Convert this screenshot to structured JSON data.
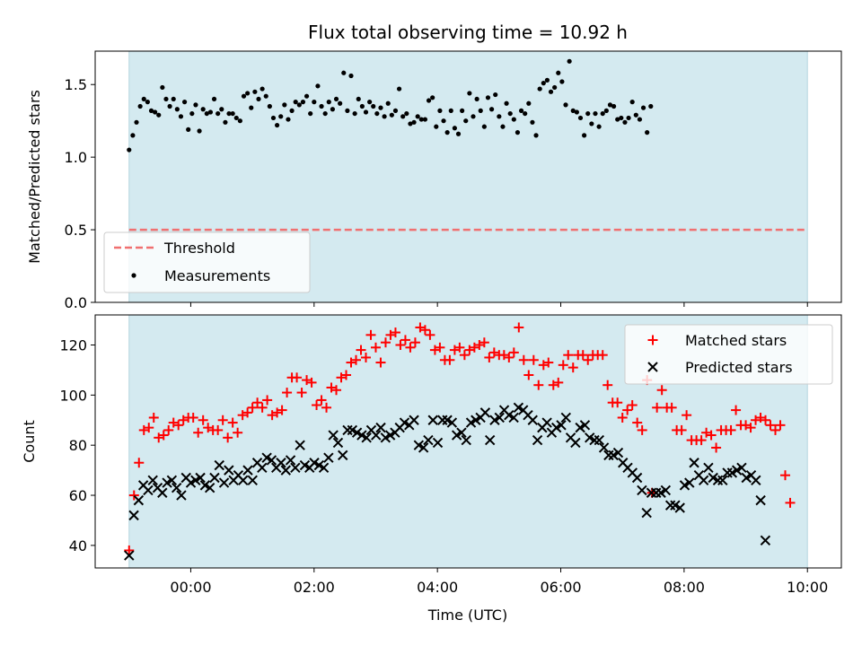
{
  "colors": {
    "shade": "#d4eaf0",
    "threshold": "#f07070",
    "measurement": "#000000",
    "matched": "#ff0000",
    "predicted": "#000000"
  },
  "chart_data": [
    {
      "type": "scatter",
      "title": "Flux total observing time = 10.92 h",
      "xlabel": "",
      "ylabel": "Matched/Predicted stars",
      "xlim": [
        -1.55,
        10.55
      ],
      "ylim": [
        0,
        1.73
      ],
      "yticks": [
        "0.0",
        "0.5",
        "1.0",
        "1.5"
      ],
      "shaded_span": [
        -1.0,
        10.0
      ],
      "threshold": {
        "label": "Threshold",
        "value": 0.5
      },
      "legend": {
        "position": "lower-left",
        "entries": [
          "Threshold",
          "Measurements"
        ]
      },
      "series": [
        {
          "name": "Measurements",
          "x_start": -1.0,
          "x_step": 0.06,
          "values": [
            1.05,
            1.15,
            1.24,
            1.35,
            1.4,
            1.38,
            1.32,
            1.31,
            1.29,
            1.48,
            1.4,
            1.35,
            1.4,
            1.33,
            1.28,
            1.38,
            1.19,
            1.3,
            1.36,
            1.18,
            1.33,
            1.3,
            1.31,
            1.4,
            1.3,
            1.33,
            1.24,
            1.3,
            1.3,
            1.27,
            1.25,
            1.42,
            1.44,
            1.34,
            1.45,
            1.4,
            1.47,
            1.42,
            1.35,
            1.27,
            1.22,
            1.28,
            1.36,
            1.26,
            1.32,
            1.38,
            1.36,
            1.38,
            1.42,
            1.3,
            1.38,
            1.49,
            1.35,
            1.3,
            1.38,
            1.33,
            1.4,
            1.37,
            1.58,
            1.32,
            1.56,
            1.3,
            1.4,
            1.35,
            1.31,
            1.38,
            1.35,
            1.3,
            1.34,
            1.28,
            1.37,
            1.29,
            1.32,
            1.47,
            1.28,
            1.3,
            1.23,
            1.24,
            1.28,
            1.26,
            1.26,
            1.39,
            1.41,
            1.21,
            1.32,
            1.25,
            1.17,
            1.32,
            1.2,
            1.16,
            1.32,
            1.25,
            1.44,
            1.28,
            1.4,
            1.32,
            1.21,
            1.41,
            1.33,
            1.43,
            1.28,
            1.21,
            1.37,
            1.3,
            1.26,
            1.17,
            1.32,
            1.3,
            1.37,
            1.24,
            1.15,
            1.47,
            1.51,
            1.53,
            1.45,
            1.48,
            1.58,
            1.52,
            1.36,
            1.66,
            1.32,
            1.31,
            1.27,
            1.15,
            1.3,
            1.23,
            1.3,
            1.21,
            1.3,
            1.32,
            1.36,
            1.35,
            1.26,
            1.27,
            1.24,
            1.27,
            1.38,
            1.29,
            1.26,
            1.34,
            1.17,
            1.35
          ]
        }
      ]
    },
    {
      "type": "scatter",
      "title": "",
      "xlabel": "Time (UTC)",
      "ylabel": "Count",
      "xlim": [
        -1.55,
        10.55
      ],
      "ylim": [
        31,
        132
      ],
      "yticks": [
        40,
        60,
        80,
        100,
        120
      ],
      "xticks": [
        "00:00",
        "02:00",
        "04:00",
        "06:00",
        "08:00",
        "10:00"
      ],
      "xtick_values": [
        0,
        2,
        4,
        6,
        8,
        10
      ],
      "shaded_span": [
        -1.0,
        10.0
      ],
      "legend": {
        "position": "top-right",
        "entries": [
          "Matched stars",
          "Predicted stars"
        ]
      },
      "series": [
        {
          "name": "Matched stars",
          "marker": "+",
          "x_start": -1.0,
          "x_step": 0.08,
          "values": [
            38,
            60,
            73,
            86,
            87,
            91,
            83,
            84,
            86,
            89,
            88,
            90,
            91,
            91,
            85,
            90,
            87,
            86,
            86,
            90,
            83,
            89,
            85,
            92,
            93,
            95,
            97,
            95,
            98,
            92,
            93,
            94,
            101,
            107,
            107,
            101,
            106,
            105,
            96,
            98,
            95,
            103,
            102,
            107,
            108,
            113,
            114,
            118,
            115,
            124,
            119,
            113,
            121,
            124,
            125,
            120,
            122,
            119,
            121,
            127,
            126,
            124,
            118,
            119,
            114,
            114,
            118,
            119,
            116,
            118,
            119,
            120,
            121,
            115,
            117,
            116,
            116,
            115,
            117,
            127,
            114,
            108,
            114,
            104,
            112,
            113,
            104,
            105,
            112,
            116,
            111,
            116,
            116,
            114,
            116,
            116,
            116,
            104,
            97,
            97,
            91,
            94,
            96,
            89,
            86,
            106,
            61,
            95,
            102,
            95,
            95,
            86,
            86,
            92,
            82,
            82,
            82,
            85,
            84,
            79,
            86,
            86,
            86,
            94,
            88,
            88,
            87,
            90,
            91,
            90,
            88,
            86,
            88,
            68,
            57
          ]
        },
        {
          "name": "Predicted stars",
          "marker": "x",
          "x_start": -1.0,
          "x_step": 0.077,
          "values": [
            36,
            52,
            58,
            64,
            62,
            66,
            63,
            61,
            65,
            66,
            63,
            60,
            67,
            65,
            66,
            67,
            64,
            63,
            67,
            72,
            65,
            70,
            66,
            68,
            66,
            70,
            66,
            73,
            71,
            75,
            74,
            71,
            73,
            70,
            74,
            71,
            80,
            72,
            71,
            73,
            72,
            71,
            75,
            84,
            81,
            76,
            86,
            86,
            85,
            84,
            83,
            86,
            84,
            87,
            83,
            84,
            85,
            87,
            89,
            88,
            90,
            80,
            79,
            82,
            90,
            81,
            90,
            90,
            89,
            84,
            85,
            82,
            89,
            90,
            91,
            93,
            82,
            90,
            91,
            94,
            92,
            91,
            95,
            94,
            92,
            90,
            82,
            87,
            89,
            85,
            87,
            88,
            91,
            83,
            81,
            87,
            88,
            83,
            82,
            82,
            79,
            76,
            76,
            77,
            73,
            71,
            69,
            67,
            62,
            53,
            61,
            61,
            61,
            62,
            56,
            56,
            55,
            64,
            65,
            73,
            68,
            66,
            71,
            67,
            66,
            66,
            69,
            69,
            70,
            71,
            67,
            68,
            66,
            58,
            42
          ]
        }
      ]
    }
  ]
}
